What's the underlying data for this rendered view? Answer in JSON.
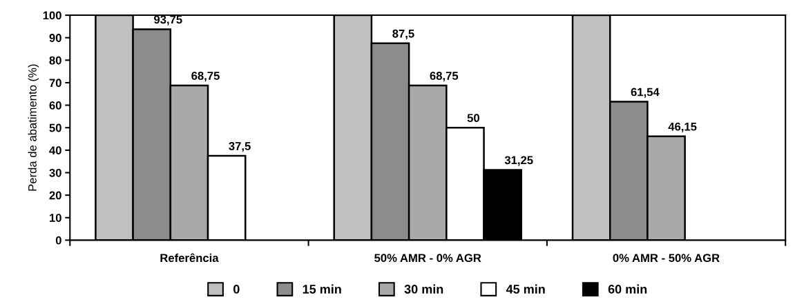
{
  "chart_data": {
    "type": "bar",
    "ylabel": "Perda de abatimento (%)",
    "categories": [
      "Referência",
      "50% AMR - 0% AGR",
      "0% AMR - 50% AGR"
    ],
    "series": [
      {
        "name": "0",
        "color": "#c0c0c0",
        "values": [
          100,
          100,
          100
        ],
        "value_labels": [
          null,
          null,
          null
        ]
      },
      {
        "name": "15 min",
        "color": "#8c8c8c",
        "values": [
          93.75,
          87.5,
          61.54
        ],
        "value_labels": [
          "93,75",
          "87,5",
          "61,54"
        ]
      },
      {
        "name": "30 min",
        "color": "#a9a9a9",
        "values": [
          68.75,
          68.75,
          46.15
        ],
        "value_labels": [
          "68,75",
          "68,75",
          "46,15"
        ]
      },
      {
        "name": "45 min",
        "color": "#ffffff",
        "values": [
          37.5,
          50,
          null
        ],
        "value_labels": [
          "37,5",
          "50",
          null
        ]
      },
      {
        "name": "60 min",
        "color": "#000000",
        "values": [
          null,
          31.25,
          null
        ],
        "value_labels": [
          null,
          "31,25",
          null
        ]
      }
    ],
    "ylim": [
      0,
      100
    ],
    "yticks": [
      0,
      10,
      20,
      30,
      40,
      50,
      60,
      70,
      80,
      90,
      100
    ],
    "grid": false,
    "legend": "bottom"
  }
}
